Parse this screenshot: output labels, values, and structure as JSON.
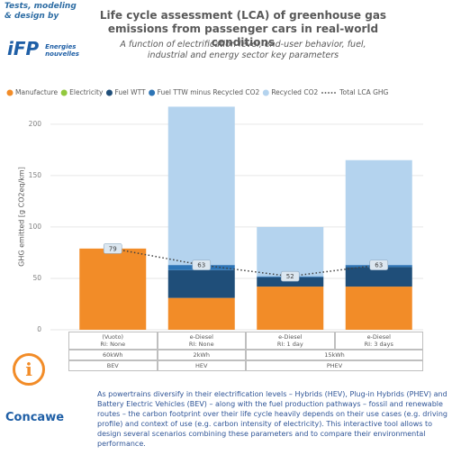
{
  "header": {
    "credit_line1": "Tests, modeling",
    "credit_line2": "& design by",
    "logo": "iFP",
    "logo_text": "Energies nouvelles"
  },
  "chart_data": {
    "type": "stacked-bar",
    "title_line1": "Life cycle assessment (LCA) of greenhouse gas",
    "title_line2": "emissions from passenger cars in real-world conditions",
    "subtitle_line1": "A function of electrification level, end-user behavior, fuel,",
    "subtitle_line2": "industrial and energy sector key parameters",
    "y_label": "GHG emitted [g CO2eq/km]",
    "categories": [
      "(Vuoto)",
      "e-Diesel",
      "e-Diesel",
      "e-Diesel"
    ],
    "subcategories": [
      "RI: None",
      "RI: None",
      "RI: 1 day",
      "RI: 3 days"
    ],
    "series": [
      {
        "name": "Manufacture",
        "color": "#f28c28",
        "values": [
          79,
          31,
          42,
          42
        ]
      },
      {
        "name": "Electricity",
        "color": "#92c83e",
        "values": [
          0,
          0,
          0,
          0
        ]
      },
      {
        "name": "Fuel WTT",
        "color": "#1f4e79",
        "values": [
          0,
          27,
          9,
          19
        ]
      },
      {
        "name": "Fuel TTW minus Recycled CO2",
        "color": "#2e75b6",
        "values": [
          0,
          5,
          1,
          2
        ]
      },
      {
        "name": "Recycled CO2",
        "color": "#b4d3ee",
        "values": [
          0,
          154,
          48,
          102
        ]
      }
    ],
    "total": {
      "name": "Total LCA GHG",
      "color": "#404040",
      "values": [
        79,
        63,
        52,
        63
      ]
    },
    "ylim": [
      0,
      220
    ],
    "yticks": [
      0,
      50,
      100,
      150,
      200
    ],
    "grid": true
  },
  "table": {
    "batteries": [
      "60kWh",
      "2kWh",
      "15kWh"
    ],
    "powertrains": [
      "BEV",
      "HEV",
      "PHEV"
    ]
  },
  "info_icon": "i",
  "footer": {
    "logo": "Concawe",
    "text": "As powertrains diversify in their electrification levels – Hybrids (HEV), Plug-in Hybrids (PHEV) and Battery Electric Vehicles (BEV) – along with the fuel production pathways – fossil and renewable routes – the carbon footprint over their life cycle heavily depends on their use cases (e.g. driving profile) and context of use (e.g. carbon intensity of electricity). This interactive tool allows to design several scenarios combining these parameters and to compare their environmental performance."
  }
}
